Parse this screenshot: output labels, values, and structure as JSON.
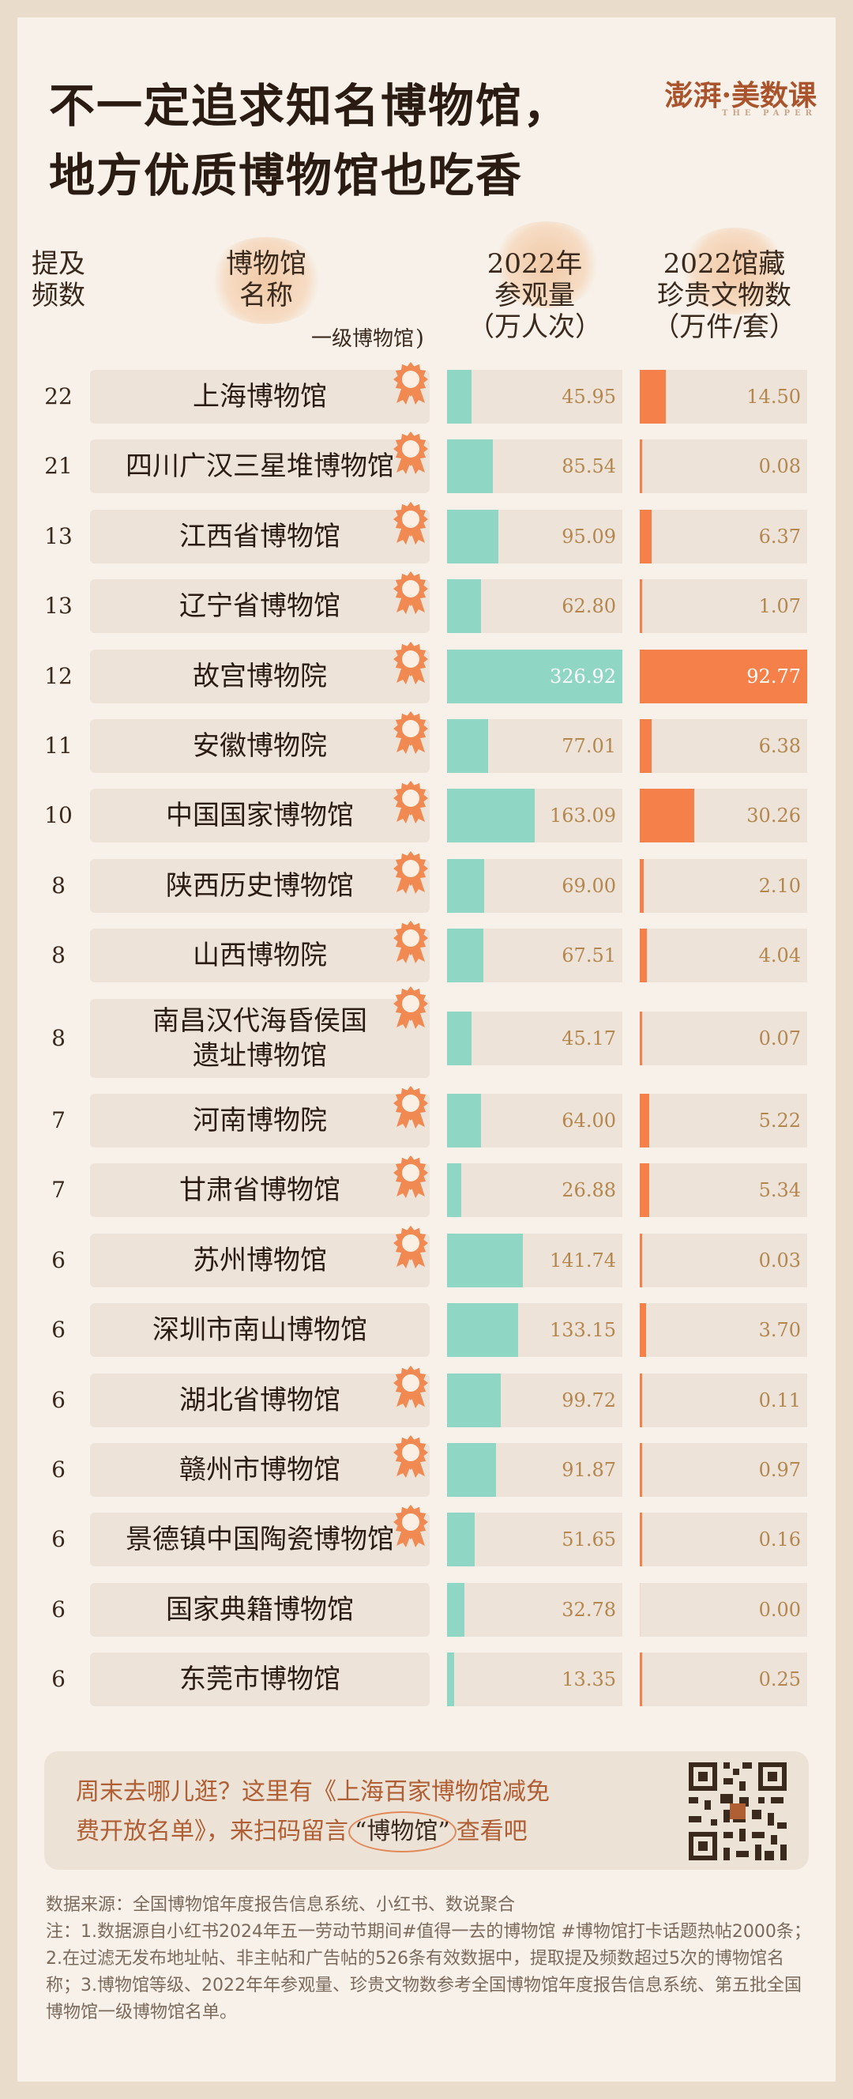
{
  "title": {
    "line1": "不一定追求知名博物馆，",
    "line2": "地方优质博物馆也吃香"
  },
  "logo": {
    "text": "澎湃·美数课",
    "sub": "THE PAPER"
  },
  "headers": {
    "freq": [
      "提及",
      "频数"
    ],
    "name": [
      "博物馆",
      "名称"
    ],
    "visitors": [
      "2022年",
      "参观量"
    ],
    "visitors_unit": "（万人次）",
    "relics": [
      "2022馆藏",
      "珍贵文物数"
    ],
    "relics_unit": "（万件/套）",
    "level_legend": "一级博物馆"
  },
  "colors": {
    "visitors_bar": "#8fd6c4",
    "relics_bar": "#f5804a",
    "badge": "#f08a52"
  },
  "chart_data": {
    "type": "table",
    "columns": [
      "提及频数",
      "博物馆名称",
      "一级博物馆",
      "2022年参观量（万人次）",
      "2022馆藏珍贵文物数（万件/套）"
    ],
    "rows": [
      {
        "freq": "22",
        "name": [
          "上海博物馆"
        ],
        "first_class": true,
        "visitors": "45.95",
        "relics": "14.50"
      },
      {
        "freq": "21",
        "name": [
          "四川广汉三星堆博物馆"
        ],
        "first_class": true,
        "visitors": "85.54",
        "relics": "0.08"
      },
      {
        "freq": "13",
        "name": [
          "江西省博物馆"
        ],
        "first_class": true,
        "visitors": "95.09",
        "relics": "6.37"
      },
      {
        "freq": "13",
        "name": [
          "辽宁省博物馆"
        ],
        "first_class": true,
        "visitors": "62.80",
        "relics": "1.07"
      },
      {
        "freq": "12",
        "name": [
          "故宫博物院"
        ],
        "first_class": true,
        "visitors": "326.92",
        "relics": "92.77"
      },
      {
        "freq": "11",
        "name": [
          "安徽博物院"
        ],
        "first_class": true,
        "visitors": "77.01",
        "relics": "6.38"
      },
      {
        "freq": "10",
        "name": [
          "中国国家博物馆"
        ],
        "first_class": true,
        "visitors": "163.09",
        "relics": "30.26"
      },
      {
        "freq": "8",
        "name": [
          "陕西历史博物馆"
        ],
        "first_class": true,
        "visitors": "69.00",
        "relics": "2.10"
      },
      {
        "freq": "8",
        "name": [
          "山西博物院"
        ],
        "first_class": true,
        "visitors": "67.51",
        "relics": "4.04"
      },
      {
        "freq": "8",
        "name": [
          "南昌汉代海昏侯国",
          "遗址博物馆"
        ],
        "first_class": true,
        "visitors": "45.17",
        "relics": "0.07"
      },
      {
        "freq": "7",
        "name": [
          "河南博物院"
        ],
        "first_class": true,
        "visitors": "64.00",
        "relics": "5.22"
      },
      {
        "freq": "7",
        "name": [
          "甘肃省博物馆"
        ],
        "first_class": true,
        "visitors": "26.88",
        "relics": "5.34"
      },
      {
        "freq": "6",
        "name": [
          "苏州博物馆"
        ],
        "first_class": true,
        "visitors": "141.74",
        "relics": "0.03"
      },
      {
        "freq": "6",
        "name": [
          "深圳市南山博物馆"
        ],
        "first_class": false,
        "visitors": "133.15",
        "relics": "3.70"
      },
      {
        "freq": "6",
        "name": [
          "湖北省博物馆"
        ],
        "first_class": true,
        "visitors": "99.72",
        "relics": "0.11"
      },
      {
        "freq": "6",
        "name": [
          "赣州市博物馆"
        ],
        "first_class": true,
        "visitors": "91.87",
        "relics": "0.97"
      },
      {
        "freq": "6",
        "name": [
          "景德镇中国陶瓷博物馆"
        ],
        "first_class": true,
        "visitors": "51.65",
        "relics": "0.16"
      },
      {
        "freq": "6",
        "name": [
          "国家典籍博物馆"
        ],
        "first_class": false,
        "visitors": "32.78",
        "relics": "0.00"
      },
      {
        "freq": "6",
        "name": [
          "东莞市博物馆"
        ],
        "first_class": false,
        "visitors": "13.35",
        "relics": "0.25"
      }
    ],
    "visitors_max": 326.92,
    "relics_max": 92.77
  },
  "promo": {
    "line1": "周末去哪儿逛？这里有《上海百家博物馆减免",
    "line2_a": "费开放名单》，来扫码留言",
    "line2_b": "“博物馆”",
    "line2_c": "查看吧"
  },
  "notes": {
    "source": "数据来源：全国博物馆年度报告信息系统、小红书、数说聚合",
    "note": "注：1.数据源自小红书2024年五一劳动节期间#值得一去的博物馆 #博物馆打卡话题热帖2000条；2.在过滤无发布地址帖、非主帖和广告帖的526条有效数据中，提取提及频数超过5次的博物馆名称；3.博物馆等级、2022年年参观量、珍贵文物数参考全国博物馆年度报告信息系统、第五批全国博物馆一级博物馆名单。"
  }
}
